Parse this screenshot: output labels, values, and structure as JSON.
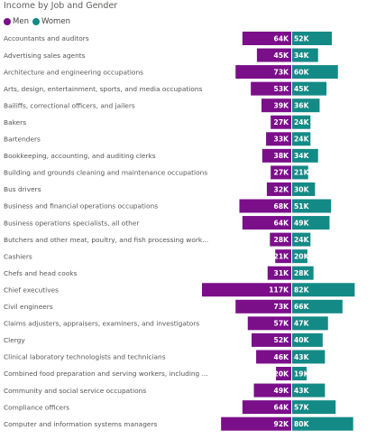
{
  "title": "Income by Job and Gender",
  "colors": {
    "men": "#7b0f8a",
    "women": "#148a86"
  },
  "chart_data": {
    "type": "bar",
    "orientation": "horizontal-diverging",
    "title": "Income by Job and Gender",
    "legend_position": "top-left",
    "categories": [
      "Accountants and auditors",
      "Advertising sales agents",
      "Architecture and engineering occupations",
      "Arts, design, entertainment, sports, and media occupations",
      "Bailiffs, correctional officers, and jailers",
      "Bakers",
      "Bartenders",
      "Bookkeeping, accounting, and auditing clerks",
      "Building and grounds cleaning and maintenance occupations",
      "Bus drivers",
      "Business and financial operations occupations",
      "Business operations specialists, all other",
      "Butchers and other meat, poultry, and fish processing work...",
      "Cashiers",
      "Chefs and head cooks",
      "Chief executives",
      "Civil engineers",
      "Claims adjusters, appraisers, examiners, and investigators",
      "Clergy",
      "Clinical laboratory technologists and technicians",
      "Combined food preparation and serving workers, including ...",
      "Community and social service occupations",
      "Compliance officers",
      "Computer and information systems managers"
    ],
    "series": [
      {
        "name": "Men",
        "color": "#7b0f8a",
        "values": [
          64,
          45,
          73,
          53,
          39,
          27,
          33,
          38,
          27,
          32,
          68,
          64,
          28,
          21,
          31,
          117,
          73,
          57,
          52,
          46,
          20,
          49,
          64,
          92
        ],
        "labels": [
          "64K",
          "45K",
          "73K",
          "53K",
          "39K",
          "27K",
          "33K",
          "38K",
          "27K",
          "32K",
          "68K",
          "64K",
          "28K",
          "21K",
          "31K",
          "117K",
          "73K",
          "57K",
          "52K",
          "46K",
          "20K",
          "49K",
          "64K",
          "92K"
        ]
      },
      {
        "name": "Women",
        "color": "#148a86",
        "values": [
          52,
          34,
          60,
          45,
          36,
          24,
          24,
          34,
          21,
          30,
          51,
          49,
          24,
          20,
          28,
          82,
          66,
          47,
          40,
          43,
          19,
          43,
          57,
          80
        ],
        "labels": [
          "52K",
          "34K",
          "60K",
          "45K",
          "36K",
          "24K",
          "24K",
          "34K",
          "21K",
          "30K",
          "51K",
          "49K",
          "24K",
          "20K",
          "28K",
          "82K",
          "66K",
          "47K",
          "40K",
          "43K",
          "19K",
          "43K",
          "57K",
          "80K"
        ]
      }
    ],
    "unit": "K"
  }
}
